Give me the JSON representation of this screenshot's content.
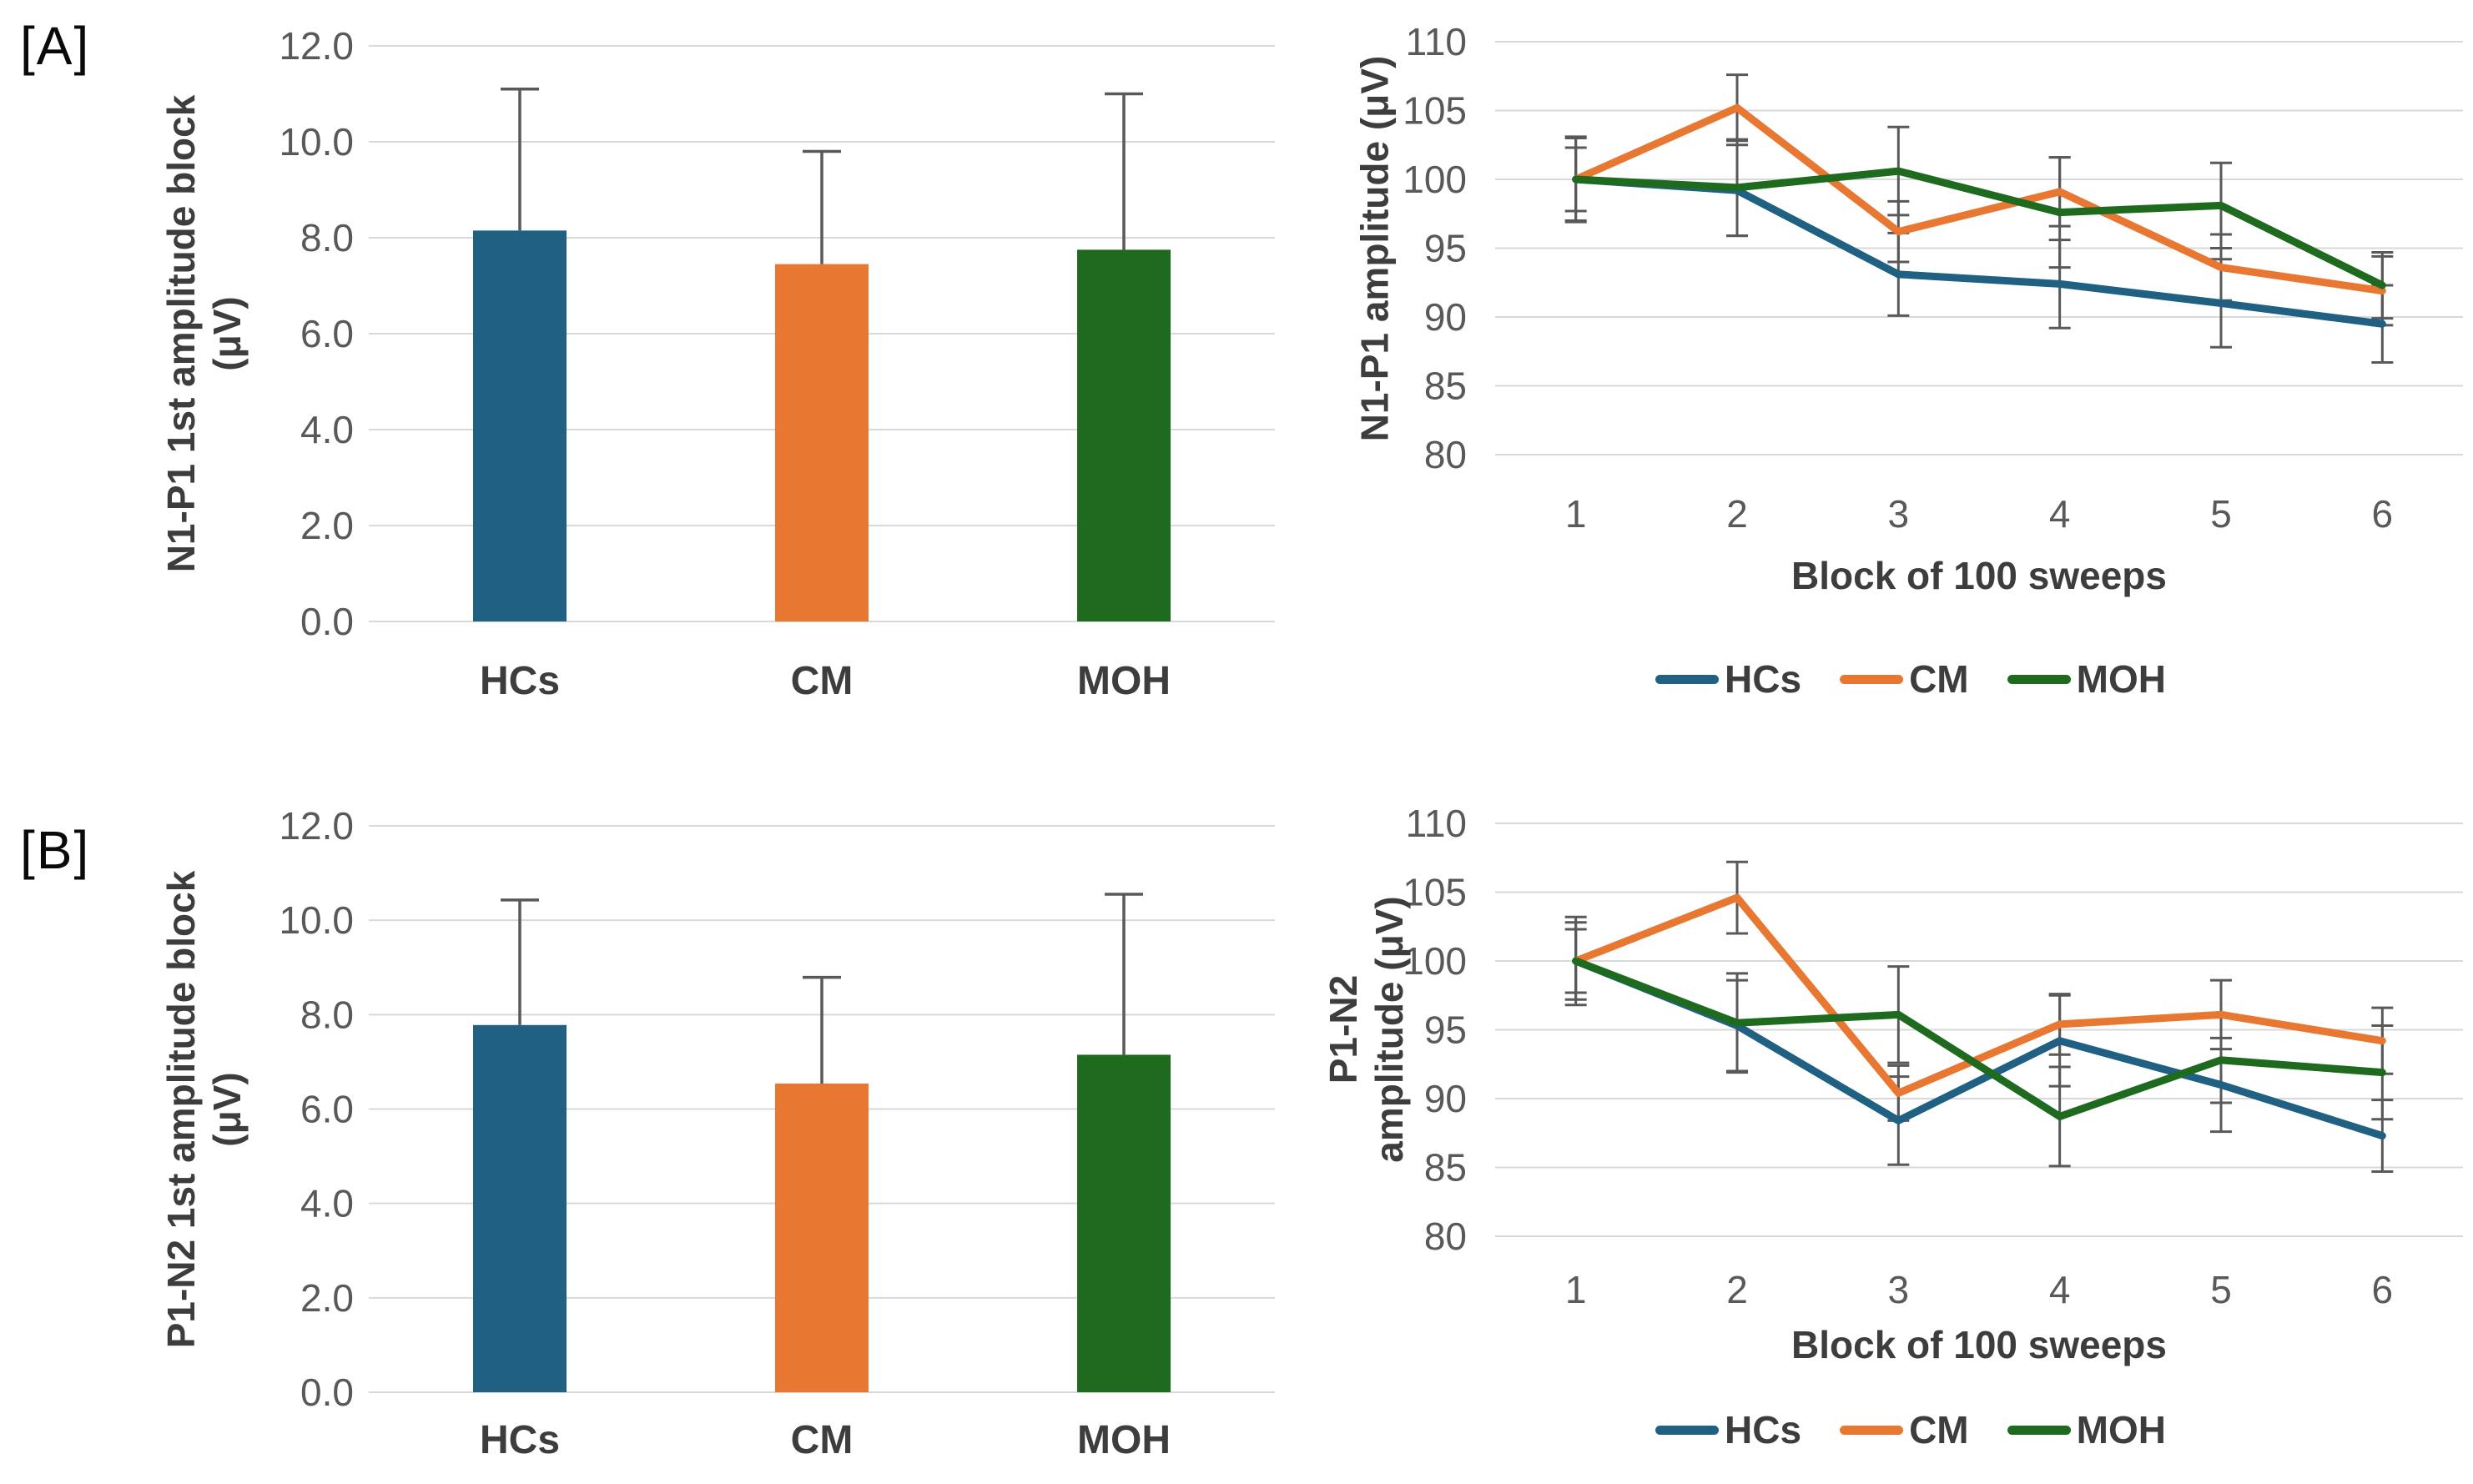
{
  "panels": {
    "a_label": "[A]",
    "b_label": "[B]"
  },
  "colors": {
    "hcs": "#1F6083",
    "cm": "#E87732",
    "moh": "#1E6A1E",
    "gridline": "#D9D9D9",
    "error_bar": "#595959",
    "tick_text": "#595959",
    "label_text": "#3D3D3D"
  },
  "chart_data": [
    {
      "id": "bar-n1p1",
      "type": "bar",
      "panel": "A",
      "ylabel_lines": [
        "N1-P1 1st amplitude block",
        "(μV)"
      ],
      "categories": [
        "HCs",
        "CM",
        "MOH"
      ],
      "values": [
        8.15,
        7.45,
        7.75
      ],
      "error_up": [
        2.95,
        2.35,
        3.25
      ],
      "ylim": [
        0,
        12
      ],
      "yticks": [
        "0.0",
        "2.0",
        "4.0",
        "6.0",
        "8.0",
        "10.0",
        "12.0"
      ],
      "bar_colors": [
        "hcs",
        "cm",
        "moh"
      ],
      "grid": true,
      "legend_position": "none"
    },
    {
      "id": "line-n1p1",
      "type": "line",
      "panel": "A",
      "ylabel_lines": [
        "N1-P1 amplitude (μV)"
      ],
      "xlabel": "Block of 100 sweeps",
      "x": [
        "1",
        "2",
        "3",
        "4",
        "5",
        "6"
      ],
      "ylim": [
        80,
        110
      ],
      "yticks": [
        "80",
        "85",
        "90",
        "95",
        "100",
        "105",
        "110"
      ],
      "grid": true,
      "legend_position": "bottom",
      "series": [
        {
          "name": "HCs",
          "color": "hcs",
          "values": [
            100,
            99.2,
            93.1,
            92.4,
            91.0,
            89.5
          ],
          "err": [
            3.0,
            3.3,
            3.0,
            3.2,
            3.2,
            2.8
          ]
        },
        {
          "name": "CM",
          "color": "cm",
          "values": [
            100,
            105.2,
            96.2,
            99.1,
            93.6,
            91.9
          ],
          "err": [
            2.3,
            2.4,
            2.2,
            2.5,
            2.4,
            2.5
          ]
        },
        {
          "name": "MOH",
          "color": "moh",
          "values": [
            100,
            99.4,
            100.6,
            97.6,
            98.1,
            92.3
          ],
          "err": [
            3.1,
            3.5,
            3.2,
            4.0,
            3.1,
            2.4
          ]
        }
      ]
    },
    {
      "id": "bar-p1n2",
      "type": "bar",
      "panel": "B",
      "ylabel_lines": [
        "P1-N2 1st amplitude block",
        "(μV)"
      ],
      "categories": [
        "HCs",
        "CM",
        "MOH"
      ],
      "values": [
        7.78,
        6.54,
        7.15
      ],
      "error_up": [
        2.65,
        2.25,
        3.4
      ],
      "ylim": [
        0,
        12
      ],
      "yticks": [
        "0.0",
        "2.0",
        "4.0",
        "6.0",
        "8.0",
        "10.0",
        "12.0"
      ],
      "bar_colors": [
        "hcs",
        "cm",
        "moh"
      ],
      "grid": true,
      "legend_position": "none"
    },
    {
      "id": "line-p1n2",
      "type": "line",
      "panel": "B",
      "ylabel_lines": [
        "P1-N2",
        "amplitude (μV)"
      ],
      "xlabel": "Block of 100 sweeps",
      "x": [
        "1",
        "2",
        "3",
        "4",
        "5",
        "6"
      ],
      "ylim": [
        80,
        110
      ],
      "yticks": [
        "80",
        "85",
        "90",
        "95",
        "100",
        "105",
        "110"
      ],
      "grid": true,
      "legend_position": "bottom",
      "series": [
        {
          "name": "HCs",
          "color": "hcs",
          "values": [
            100,
            95.3,
            88.4,
            94.2,
            91.0,
            87.3
          ],
          "err": [
            2.8,
            3.3,
            3.2,
            3.3,
            3.4,
            2.6
          ]
        },
        {
          "name": "CM",
          "color": "cm",
          "values": [
            100,
            104.6,
            90.4,
            95.4,
            96.1,
            94.2
          ],
          "err": [
            2.3,
            2.6,
            2.0,
            2.2,
            2.5,
            2.4
          ]
        },
        {
          "name": "MOH",
          "color": "moh",
          "values": [
            100,
            95.5,
            96.1,
            88.7,
            92.8,
            91.9
          ],
          "err": [
            3.2,
            3.6,
            3.5,
            3.6,
            3.1,
            3.4
          ]
        }
      ]
    }
  ]
}
